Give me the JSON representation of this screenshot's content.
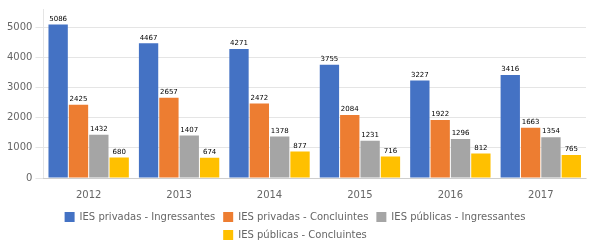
{
  "chart_data": {
    "type": "bar",
    "categories": [
      "2012",
      "2013",
      "2014",
      "2015",
      "2016",
      "2017"
    ],
    "series": [
      {
        "name": "IES privadas - Ingressantes",
        "color": "#4472C4",
        "values": [
          5086,
          4467,
          4271,
          3755,
          3227,
          3416
        ]
      },
      {
        "name": "IES privadas - Concluintes",
        "color": "#ED7D31",
        "values": [
          2425,
          2657,
          2472,
          2084,
          1922,
          1663
        ]
      },
      {
        "name": "IES públicas - Ingressantes",
        "color": "#A5A5A5",
        "values": [
          1432,
          1407,
          1378,
          1231,
          1296,
          1354
        ]
      },
      {
        "name": "IES públicas - Concluintes",
        "color": "#FFC000",
        "values": [
          680,
          674,
          877,
          716,
          812,
          765
        ]
      }
    ],
    "ylim": [
      0,
      5600
    ],
    "yticks": [
      0,
      1000,
      2000,
      3000,
      4000,
      5000
    ],
    "grid": true,
    "legend": "bottom",
    "data_labels": true
  }
}
